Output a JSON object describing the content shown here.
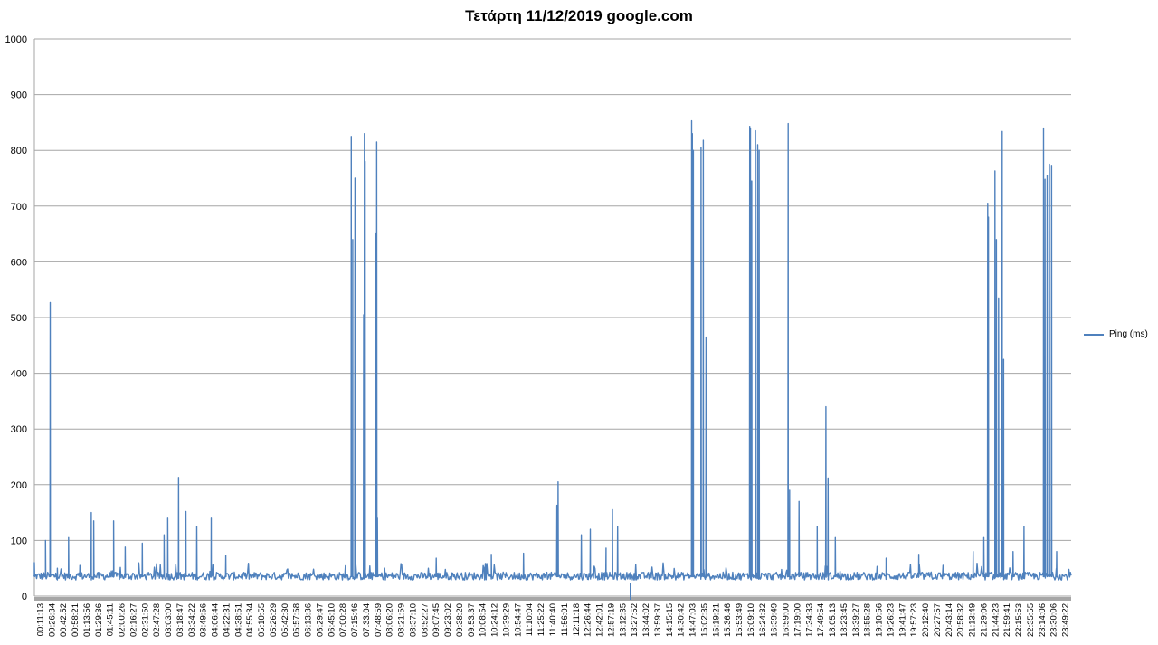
{
  "chart_data": {
    "type": "line",
    "title": "Τετάρτη 11/12/2019 google.com",
    "xlabel": "",
    "ylabel": "",
    "ylim": [
      0,
      1000
    ],
    "yticks": [
      0,
      100,
      200,
      300,
      400,
      500,
      600,
      700,
      800,
      900,
      1000
    ],
    "grid": true,
    "legend_position": "right",
    "series": [
      {
        "name": "Ping (ms)",
        "color": "#4f81bd",
        "baseline": 35,
        "spikes": [
          [
            "00:11:13",
            60
          ],
          [
            "00:26:34",
            100
          ],
          [
            "00:33:00",
            527
          ],
          [
            "00:42:52",
            50
          ],
          [
            "00:58:21",
            105
          ],
          [
            "01:13:56",
            55
          ],
          [
            "01:29:36",
            150
          ],
          [
            "01:33:00",
            135
          ],
          [
            "02:00:26",
            135
          ],
          [
            "02:16:27",
            88
          ],
          [
            "02:40:00",
            95
          ],
          [
            "03:10:00",
            110
          ],
          [
            "03:15:00",
            140
          ],
          [
            "03:30:00",
            213
          ],
          [
            "03:40:00",
            152
          ],
          [
            "03:55:00",
            125
          ],
          [
            "04:15:00",
            140
          ],
          [
            "04:35:00",
            73
          ],
          [
            "07:28:00",
            825
          ],
          [
            "07:30:00",
            640
          ],
          [
            "07:33:04",
            750
          ],
          [
            "07:45:00",
            505
          ],
          [
            "07:46:00",
            830
          ],
          [
            "07:47:00",
            780
          ],
          [
            "08:02:00",
            650
          ],
          [
            "08:03:00",
            815
          ],
          [
            "08:04:00",
            140
          ],
          [
            "09:25:00",
            68
          ],
          [
            "10:41:00",
            75
          ],
          [
            "11:25:22",
            77
          ],
          [
            "12:11:18",
            163
          ],
          [
            "12:13:00",
            205
          ],
          [
            "12:45:00",
            110
          ],
          [
            "12:57:19",
            120
          ],
          [
            "13:19:00",
            86
          ],
          [
            "13:27:52",
            155
          ],
          [
            "13:35:00",
            125
          ],
          [
            "15:17:00",
            853
          ],
          [
            "15:18:00",
            830
          ],
          [
            "15:19:21",
            800
          ],
          [
            "15:30:00",
            805
          ],
          [
            "15:33:00",
            818
          ],
          [
            "15:36:46",
            465
          ],
          [
            "16:37:00",
            843
          ],
          [
            "16:38:00",
            840
          ],
          [
            "16:39:49",
            745
          ],
          [
            "16:45:00",
            835
          ],
          [
            "16:48:00",
            810
          ],
          [
            "16:50:00",
            800
          ],
          [
            "17:30:00",
            848
          ],
          [
            "17:32:00",
            190
          ],
          [
            "17:45:00",
            170
          ],
          [
            "18:10:00",
            125
          ],
          [
            "18:22:00",
            340
          ],
          [
            "18:25:00",
            212
          ],
          [
            "18:35:00",
            105
          ],
          [
            "19:45:00",
            68
          ],
          [
            "20:30:00",
            75
          ],
          [
            "21:45:00",
            80
          ],
          [
            "21:59:41",
            105
          ],
          [
            "22:05:00",
            705
          ],
          [
            "22:06:00",
            680
          ],
          [
            "22:15:00",
            763
          ],
          [
            "22:17:00",
            640
          ],
          [
            "22:20:00",
            535
          ],
          [
            "22:25:00",
            834
          ],
          [
            "22:27:00",
            425
          ],
          [
            "22:40:00",
            80
          ],
          [
            "22:55:00",
            125
          ],
          [
            "23:22:00",
            840
          ],
          [
            "23:24:00",
            748
          ],
          [
            "23:27:00",
            755
          ],
          [
            "23:30:00",
            775
          ],
          [
            "23:33:00",
            773
          ],
          [
            "23:40:00",
            80
          ]
        ]
      }
    ],
    "x_tick_labels": [
      "00:11:13",
      "00:26:34",
      "00:42:52",
      "00:58:21",
      "01:13:56",
      "01:29:36",
      "01:45:11",
      "02:00:26",
      "02:16:27",
      "02:31:50",
      "02:47:28",
      "03:03:00",
      "03:18:47",
      "03:34:22",
      "03:49:56",
      "04:06:44",
      "04:22:31",
      "04:38:51",
      "04:55:34",
      "05:10:55",
      "05:26:29",
      "05:42:30",
      "05:57:58",
      "06:13:36",
      "06:29:47",
      "06:45:10",
      "07:00:28",
      "07:15:46",
      "07:33:04",
      "07:48:59",
      "08:06:20",
      "08:21:59",
      "08:37:10",
      "08:52:27",
      "09:07:45",
      "09:23:02",
      "09:38:20",
      "09:53:37",
      "10:08:54",
      "10:24:12",
      "10:39:29",
      "10:54:47",
      "11:10:04",
      "11:25:22",
      "11:40:40",
      "11:56:01",
      "12:11:18",
      "12:26:44",
      "12:42:01",
      "12:57:19",
      "13:12:35",
      "13:27:52",
      "13:44:02",
      "13:59:37",
      "14:15:15",
      "14:30:42",
      "14:47:03",
      "15:02:35",
      "15:19:21",
      "15:36:46",
      "15:53:49",
      "16:09:10",
      "16:24:32",
      "16:39:49",
      "16:59:00",
      "17:19:00",
      "17:34:33",
      "17:49:54",
      "18:05:13",
      "18:23:45",
      "18:39:27",
      "18:55:28",
      "19:10:56",
      "19:26:23",
      "19:41:47",
      "19:57:23",
      "20:12:40",
      "20:27:57",
      "20:43:14",
      "20:58:32",
      "21:13:49",
      "21:29:06",
      "21:44:23",
      "21:59:41",
      "22:15:53",
      "22:35:55",
      "23:14:06",
      "23:30:06",
      "23:49:22"
    ]
  }
}
